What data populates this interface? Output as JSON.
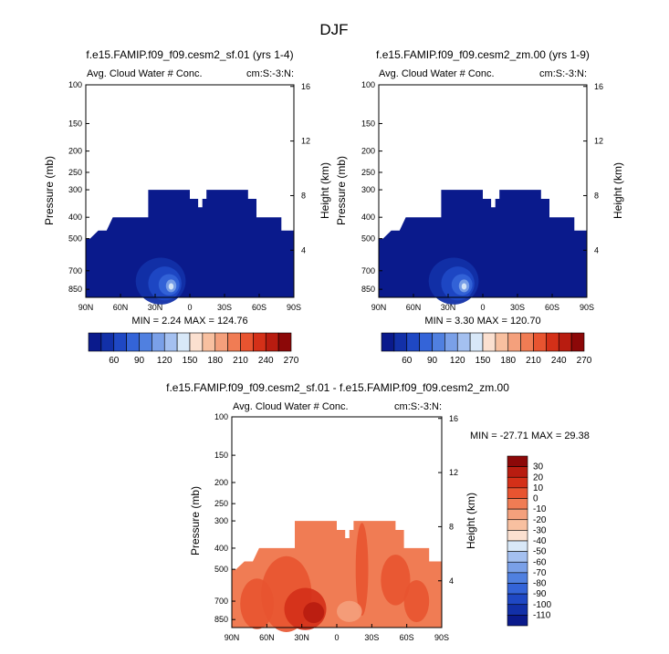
{
  "figure": {
    "title": "DJF"
  },
  "colors": {
    "base_fill": "#0a1a8c",
    "panel1_palette": [
      "#0a1a8c",
      "#1230a8",
      "#1f48c4",
      "#3464d8",
      "#5080e0",
      "#7aa0e8",
      "#a4c0f0",
      "#d8e8f8",
      "#fbe0d0",
      "#f8c0a0",
      "#f4a07c",
      "#f07c54",
      "#e85430",
      "#d43018",
      "#b81c10",
      "#8c0808"
    ],
    "diff_palette": [
      "#0a1a8c",
      "#1230a8",
      "#1f48c4",
      "#3464d8",
      "#5080e0",
      "#7aa0e8",
      "#a4c0f0",
      "#d8e8f8",
      "#fbe0d0",
      "#f8c0a0",
      "#f4a07c",
      "#f07c54",
      "#e85430",
      "#d43018",
      "#b81c10",
      "#8c0808"
    ]
  },
  "panel1": {
    "title": "f.e15.FAMIP.f09_f09.cesm2_sf.01 (yrs 1-4)",
    "left_label": "Avg. Cloud Water # Conc.",
    "right_label": "cm:S:-3:N:",
    "ylabel": "Pressure (mb)",
    "y2label": "Height (km)",
    "minmax": "MIN =   2.24  MAX = 124.76"
  },
  "panel2": {
    "title": "f.e15.FAMIP.f09_f09.cesm2_zm.00 (yrs 1-9)",
    "left_label": "Avg. Cloud Water # Conc.",
    "right_label": "cm:S:-3:N:",
    "ylabel": "Pressure (mb)",
    "y2label": "Height (km)",
    "minmax": "MIN =   3.30  MAX = 120.70"
  },
  "panel3": {
    "title": "f.e15.FAMIP.f09_f09.cesm2_sf.01 - f.e15.FAMIP.f09_f09.cesm2_zm.00",
    "left_label": "Avg. Cloud Water # Conc.",
    "right_label": "cm:S:-3:N:",
    "ylabel": "Pressure (mb)",
    "y2label": "Height (km)",
    "minmax": "MIN = -27.71   MAX =  29.38"
  },
  "axes": {
    "x_ticks": [
      "90N",
      "60N",
      "30N",
      "0",
      "30S",
      "60S",
      "90S"
    ],
    "y_ticks": [
      "100",
      "150",
      "200",
      "250",
      "300",
      "400",
      "500",
      "700",
      "850"
    ],
    "y_tick_values": [
      100,
      150,
      200,
      250,
      300,
      400,
      500,
      700,
      850
    ],
    "y2_ticks": [
      "16",
      "12",
      "8",
      "4"
    ],
    "y2_tick_values": [
      16,
      12,
      8,
      4
    ]
  },
  "colorbar_main": {
    "labels": [
      "60",
      "90",
      "120",
      "150",
      "180",
      "210",
      "240",
      "270"
    ]
  },
  "colorbar_diff": {
    "labels": [
      "30",
      "20",
      "10",
      "0",
      "-10",
      "-20",
      "-30",
      "-40",
      "-50",
      "-60",
      "-70",
      "-80",
      "-90",
      "-100",
      "-110"
    ]
  },
  "chart_data": [
    {
      "type": "heatmap",
      "title": "f.e15.FAMIP.f09_f09.cesm2_sf.01 (yrs 1-4)",
      "xlabel": "",
      "ylabel": "Pressure (mb)",
      "y2label": "Height (km)",
      "x_ticks": [
        "90N",
        "60N",
        "30N",
        "0",
        "30S",
        "60S",
        "90S"
      ],
      "y_ticks": [
        100,
        150,
        200,
        250,
        300,
        400,
        500,
        700,
        850
      ],
      "ylim": [
        100,
        925
      ],
      "y_scale": "log",
      "min": 2.24,
      "max": 124.76,
      "levels": [
        60,
        90,
        120,
        150,
        180,
        210,
        240,
        270
      ]
    },
    {
      "type": "heatmap",
      "title": "f.e15.FAMIP.f09_f09.cesm2_zm.00 (yrs 1-9)",
      "xlabel": "",
      "ylabel": "Pressure (mb)",
      "y2label": "Height (km)",
      "x_ticks": [
        "90N",
        "60N",
        "30N",
        "0",
        "30S",
        "60S",
        "90S"
      ],
      "y_ticks": [
        100,
        150,
        200,
        250,
        300,
        400,
        500,
        700,
        850
      ],
      "ylim": [
        100,
        925
      ],
      "y_scale": "log",
      "min": 3.3,
      "max": 120.7,
      "levels": [
        60,
        90,
        120,
        150,
        180,
        210,
        240,
        270
      ]
    },
    {
      "type": "heatmap",
      "title": "f.e15.FAMIP.f09_f09.cesm2_sf.01 - f.e15.FAMIP.f09_f09.cesm2_zm.00",
      "xlabel": "",
      "ylabel": "Pressure (mb)",
      "y2label": "Height (km)",
      "x_ticks": [
        "90N",
        "60N",
        "30N",
        "0",
        "30S",
        "60S",
        "90S"
      ],
      "y_ticks": [
        100,
        150,
        200,
        250,
        300,
        400,
        500,
        700,
        850
      ],
      "ylim": [
        100,
        925
      ],
      "y_scale": "log",
      "min": -27.71,
      "max": 29.38,
      "levels": [
        30,
        20,
        10,
        0,
        -10,
        -20,
        -30,
        -40,
        -50,
        -60,
        -70,
        -80,
        -90,
        -100,
        -110
      ]
    }
  ]
}
